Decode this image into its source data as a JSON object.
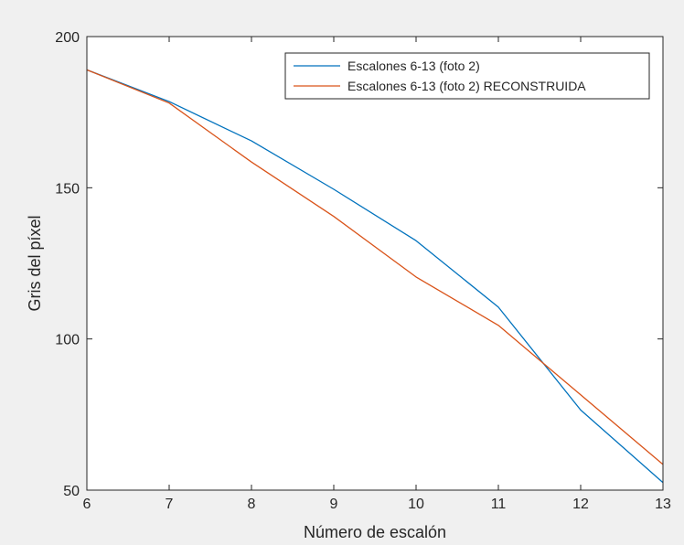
{
  "colors": {
    "figure_background": "#f0f0f0",
    "axes_background": "#ffffff",
    "axis_color": "#262626",
    "series_1": "#0072bd",
    "series_2": "#d95319"
  },
  "chart_data": {
    "type": "line",
    "title": "",
    "xlabel": "Número de escalón",
    "ylabel": "Gris del píxel",
    "xlim": [
      6,
      13
    ],
    "ylim": [
      50,
      200
    ],
    "xticks": [
      6,
      7,
      8,
      9,
      10,
      11,
      12,
      13
    ],
    "yticks": [
      50,
      100,
      150,
      200
    ],
    "grid": false,
    "legend_position": "top-right",
    "x": [
      6,
      7,
      8,
      9,
      10,
      11,
      12,
      13
    ],
    "series": [
      {
        "name": "Escalones 6-13 (foto 2)",
        "values": [
          189,
          178.5,
          165.5,
          149.5,
          132.5,
          110.5,
          76.5,
          52.5
        ]
      },
      {
        "name": "Escalones 6-13 (foto 2) RECONSTRUIDA",
        "values": [
          189,
          178,
          158.5,
          140.5,
          120.5,
          104.5,
          81.5,
          58.5
        ]
      }
    ]
  }
}
